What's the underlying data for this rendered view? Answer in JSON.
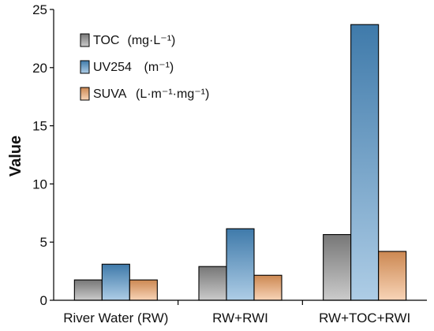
{
  "chart_data": {
    "type": "bar",
    "title": "",
    "xlabel": "",
    "ylabel": "Value",
    "ylim": [
      0,
      25
    ],
    "yticks": [
      0,
      5,
      10,
      15,
      20,
      25
    ],
    "grid": false,
    "legend_position": "top-left",
    "categories": [
      "River Water (RW)",
      "RW+RWI",
      "RW+TOC+RWI"
    ],
    "series": [
      {
        "name": "TOC",
        "unit": "mg·L⁻¹",
        "color": "#8c8c8c",
        "values": [
          1.75,
          2.9,
          5.65
        ]
      },
      {
        "name": "UV254",
        "unit": "m⁻¹",
        "color": "#4a90c8",
        "values": [
          3.1,
          6.15,
          23.7
        ]
      },
      {
        "name": "SUVA",
        "unit": "L·m⁻¹·mg⁻¹",
        "color": "#f0a060",
        "values": [
          1.75,
          2.15,
          4.2
        ]
      }
    ]
  }
}
